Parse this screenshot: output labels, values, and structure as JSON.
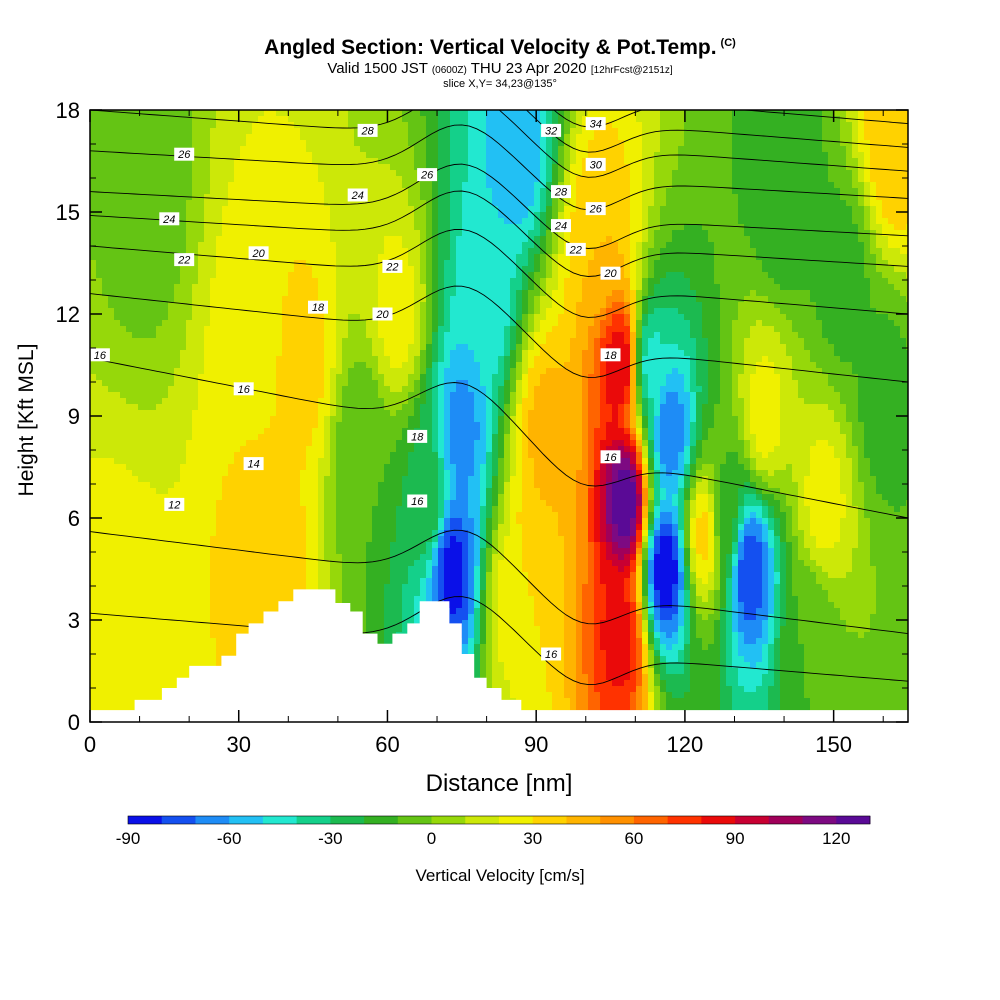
{
  "title": {
    "main": "Angled Section: Vertical Velocity & Pot.Temp.",
    "main_unit": "(C)",
    "valid_a": "Valid 1500 JST",
    "valid_b": "(0600Z)",
    "valid_c": "THU 23 Apr 2020",
    "valid_d": "[12hrFcst@2151z]",
    "slice": "slice X,Y= 34,23@135°"
  },
  "chart_data": {
    "type": "heatmap",
    "xlabel": "Distance [nm]",
    "ylabel": "Height [Kft MSL]",
    "xlim": [
      0,
      165
    ],
    "ylim": [
      0,
      18
    ],
    "x_ticks": [
      0,
      30,
      60,
      90,
      120,
      150
    ],
    "y_ticks": [
      0,
      3,
      6,
      9,
      12,
      15,
      18
    ],
    "colorbar": {
      "label": "Vertical Velocity [cm/s]",
      "range": [
        -90,
        130
      ],
      "tick_values": [
        -90,
        -60,
        -30,
        0,
        30,
        60,
        90,
        120
      ],
      "tick_labels": [
        "-90",
        "-60",
        "-30",
        "0",
        "30",
        "60",
        "90",
        "120"
      ],
      "colors": [
        "#0a10e8",
        "#1450f0",
        "#1e8cf6",
        "#22c0f4",
        "#22e8d0",
        "#14d08a",
        "#1cba50",
        "#34b022",
        "#64c414",
        "#96d80a",
        "#cce808",
        "#f0f000",
        "#ffd200",
        "#ffb400",
        "#ff9000",
        "#ff6400",
        "#ff3200",
        "#ea0a0a",
        "#c80032",
        "#a0005a",
        "#7d0a82",
        "#5a0a96"
      ]
    },
    "velocity_features": [
      {
        "x": 5,
        "z": 2.5,
        "value": 25
      },
      {
        "x": 36,
        "z": 5.0,
        "value": 40
      },
      {
        "x": 43,
        "z": 10.5,
        "value": 35
      },
      {
        "x": 33,
        "z": 11.5,
        "value": 25
      },
      {
        "x": 12,
        "z": 15.5,
        "value": -5
      },
      {
        "x": 55,
        "z": 8.0,
        "value": -10
      },
      {
        "x": 62,
        "z": 12.0,
        "value": 25
      },
      {
        "x": 68,
        "z": 6.5,
        "value": -20
      },
      {
        "x": 73,
        "z": 4.5,
        "value": -85
      },
      {
        "x": 75,
        "z": 8.5,
        "value": -65
      },
      {
        "x": 80,
        "z": 12.5,
        "value": -50
      },
      {
        "x": 86,
        "z": 17.0,
        "value": -60
      },
      {
        "x": 85,
        "z": 3.5,
        "value": 25
      },
      {
        "x": 91,
        "z": 5.5,
        "value": 40
      },
      {
        "x": 92,
        "z": 8.5,
        "value": 45
      },
      {
        "x": 103,
        "z": 14.0,
        "value": 40
      },
      {
        "x": 108,
        "z": 6.5,
        "value": 130
      },
      {
        "x": 107,
        "z": 10.5,
        "value": 90
      },
      {
        "x": 107,
        "z": 2.5,
        "value": 85
      },
      {
        "x": 113,
        "z": 10.5,
        "value": -45
      },
      {
        "x": 116,
        "z": 4.5,
        "value": -90
      },
      {
        "x": 117,
        "z": 8.5,
        "value": -70
      },
      {
        "x": 124,
        "z": 5.5,
        "value": 35
      },
      {
        "x": 128,
        "z": 6.0,
        "value": -15
      },
      {
        "x": 133,
        "z": 4.5,
        "value": -80
      },
      {
        "x": 136,
        "z": 9.0,
        "value": 25
      },
      {
        "x": 148,
        "z": 6.5,
        "value": 25
      },
      {
        "x": 145,
        "z": 2.5,
        "value": -10
      },
      {
        "x": 152,
        "z": 13.0,
        "value": -15
      },
      {
        "x": 140,
        "z": 15.5,
        "value": -20
      },
      {
        "x": 160,
        "z": 9.5,
        "value": -15
      },
      {
        "x": 162,
        "z": 17.0,
        "value": 40
      }
    ],
    "theta_contours": [
      {
        "value": 12,
        "z_left": 3.2,
        "z_right": 1.2
      },
      {
        "value": 14,
        "z_left": 5.6,
        "z_right": 2.6
      },
      {
        "value": 16,
        "z_left": 10.7,
        "z_right": 6.0
      },
      {
        "value": 18,
        "z_left": 12.6,
        "z_right": 10.0
      },
      {
        "value": 20,
        "z_left": 14.0,
        "z_right": 12.0
      },
      {
        "value": 22,
        "z_left": 14.9,
        "z_right": 13.4
      },
      {
        "value": 24,
        "z_left": 15.6,
        "z_right": 14.3
      },
      {
        "value": 26,
        "z_left": 16.8,
        "z_right": 15.4
      },
      {
        "value": 28,
        "z_left": 18.0,
        "z_right": 16.2
      },
      {
        "value": 30,
        "z_left": 18.8,
        "z_right": 16.9
      },
      {
        "value": 32,
        "z_left": 19.6,
        "z_right": 17.6
      },
      {
        "value": 34,
        "z_left": 20.4,
        "z_right": 18.3
      }
    ],
    "contour_labels": [
      {
        "text": "26",
        "x": 19,
        "z": 16.7
      },
      {
        "text": "24",
        "x": 16,
        "z": 14.8
      },
      {
        "text": "22",
        "x": 19,
        "z": 13.6
      },
      {
        "text": "20",
        "x": 34,
        "z": 13.8
      },
      {
        "text": "18",
        "x": 46,
        "z": 12.2
      },
      {
        "text": "16",
        "x": 2,
        "z": 10.8
      },
      {
        "text": "16",
        "x": 31,
        "z": 9.8
      },
      {
        "text": "14",
        "x": 33,
        "z": 7.6
      },
      {
        "text": "12",
        "x": 17,
        "z": 6.4
      },
      {
        "text": "28",
        "x": 56,
        "z": 17.4
      },
      {
        "text": "24",
        "x": 54,
        "z": 15.5
      },
      {
        "text": "20",
        "x": 59,
        "z": 12.0
      },
      {
        "text": "22",
        "x": 61,
        "z": 13.4
      },
      {
        "text": "26",
        "x": 68,
        "z": 16.1
      },
      {
        "text": "18",
        "x": 66,
        "z": 8.4
      },
      {
        "text": "16",
        "x": 66,
        "z": 6.5
      },
      {
        "text": "32",
        "x": 93,
        "z": 17.4
      },
      {
        "text": "34",
        "x": 102,
        "z": 17.6
      },
      {
        "text": "30",
        "x": 102,
        "z": 16.4
      },
      {
        "text": "28",
        "x": 95,
        "z": 15.6
      },
      {
        "text": "26",
        "x": 102,
        "z": 15.1
      },
      {
        "text": "24",
        "x": 95,
        "z": 14.6
      },
      {
        "text": "22",
        "x": 98,
        "z": 13.9
      },
      {
        "text": "20",
        "x": 105,
        "z": 13.2
      },
      {
        "text": "18",
        "x": 105,
        "z": 10.8
      },
      {
        "text": "16",
        "x": 105,
        "z": 7.8
      },
      {
        "text": "16",
        "x": 93,
        "z": 2.0
      }
    ],
    "terrain": [
      {
        "x": 0,
        "z": 0.35
      },
      {
        "x": 9,
        "z": 0.35
      },
      {
        "x": 9,
        "z": 0.65
      },
      {
        "x": 14.5,
        "z": 0.65
      },
      {
        "x": 14.5,
        "z": 1.0
      },
      {
        "x": 17.5,
        "z": 1.0
      },
      {
        "x": 17.5,
        "z": 1.3
      },
      {
        "x": 20,
        "z": 1.3
      },
      {
        "x": 20,
        "z": 1.65
      },
      {
        "x": 26.5,
        "z": 1.65
      },
      {
        "x": 26.5,
        "z": 1.95
      },
      {
        "x": 29.5,
        "z": 1.95
      },
      {
        "x": 29.5,
        "z": 2.6
      },
      {
        "x": 32,
        "z": 2.6
      },
      {
        "x": 32,
        "z": 2.9
      },
      {
        "x": 35,
        "z": 2.9
      },
      {
        "x": 35,
        "z": 3.25
      },
      {
        "x": 38,
        "z": 3.25
      },
      {
        "x": 38,
        "z": 3.55
      },
      {
        "x": 41,
        "z": 3.55
      },
      {
        "x": 41,
        "z": 3.9
      },
      {
        "x": 49.5,
        "z": 3.9
      },
      {
        "x": 49.5,
        "z": 3.5
      },
      {
        "x": 52.5,
        "z": 3.5
      },
      {
        "x": 52.5,
        "z": 3.25
      },
      {
        "x": 55,
        "z": 3.25
      },
      {
        "x": 55,
        "z": 2.6
      },
      {
        "x": 58,
        "z": 2.6
      },
      {
        "x": 58,
        "z": 2.3
      },
      {
        "x": 61,
        "z": 2.3
      },
      {
        "x": 61,
        "z": 2.6
      },
      {
        "x": 64,
        "z": 2.6
      },
      {
        "x": 64,
        "z": 2.9
      },
      {
        "x": 66.5,
        "z": 2.9
      },
      {
        "x": 66.5,
        "z": 3.55
      },
      {
        "x": 72.5,
        "z": 3.55
      },
      {
        "x": 72.5,
        "z": 2.9
      },
      {
        "x": 75,
        "z": 2.9
      },
      {
        "x": 75,
        "z": 2.0
      },
      {
        "x": 77.5,
        "z": 2.0
      },
      {
        "x": 77.5,
        "z": 1.3
      },
      {
        "x": 80,
        "z": 1.3
      },
      {
        "x": 80,
        "z": 1.0
      },
      {
        "x": 83,
        "z": 1.0
      },
      {
        "x": 83,
        "z": 0.65
      },
      {
        "x": 87,
        "z": 0.65
      },
      {
        "x": 87,
        "z": 0.35
      },
      {
        "x": 165,
        "z": 0.35
      }
    ]
  }
}
